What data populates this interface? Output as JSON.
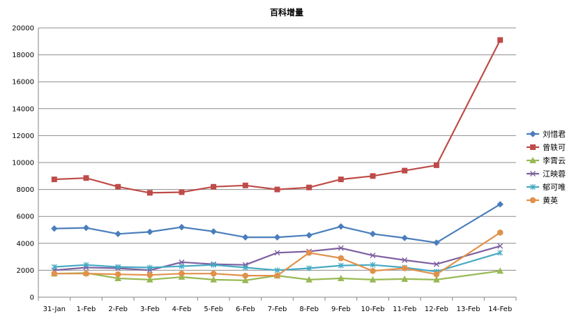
{
  "chart_data": {
    "type": "line",
    "title": "百科增量",
    "xlabel": "",
    "ylabel": "",
    "categories": [
      "31-Jan",
      "1-Feb",
      "2-Feb",
      "3-Feb",
      "4-Feb",
      "5-Feb",
      "6-Feb",
      "7-Feb",
      "8-Feb",
      "9-Feb",
      "10-Feb",
      "11-Feb",
      "12-Feb",
      "13-Feb",
      "14-Feb"
    ],
    "ylim": [
      0,
      20000
    ],
    "yticks": [
      0,
      2000,
      4000,
      6000,
      8000,
      10000,
      12000,
      14000,
      16000,
      18000,
      20000
    ],
    "grid": true,
    "legend": "right",
    "series": [
      {
        "name": "刘惜君",
        "color": "#4a7ebb",
        "marker": "diamond",
        "values": [
          5100,
          5150,
          4700,
          4850,
          5200,
          4880,
          4450,
          4450,
          4600,
          5250,
          4700,
          4400,
          4050,
          null,
          6900
        ]
      },
      {
        "name": "曾轶可",
        "color": "#be4b48",
        "marker": "square",
        "values": [
          8750,
          8850,
          8200,
          7750,
          7800,
          8200,
          8300,
          8000,
          8150,
          8750,
          9000,
          9400,
          9800,
          null,
          19100
        ]
      },
      {
        "name": "李霄云",
        "color": "#98b954",
        "marker": "triangle",
        "values": [
          1750,
          1800,
          1400,
          1300,
          1500,
          1300,
          1250,
          1600,
          1300,
          1400,
          1300,
          1350,
          1300,
          null,
          1950
        ]
      },
      {
        "name": "江映蓉",
        "color": "#7d60a0",
        "marker": "x",
        "values": [
          2000,
          2200,
          2150,
          2000,
          2600,
          2450,
          2400,
          3300,
          3400,
          3650,
          3100,
          2750,
          2450,
          null,
          3800
        ]
      },
      {
        "name": "郁可唯",
        "color": "#46aac4",
        "marker": "asterisk",
        "values": [
          2250,
          2400,
          2250,
          2200,
          2300,
          2400,
          2200,
          2000,
          2150,
          2350,
          2400,
          2200,
          1900,
          null,
          3300
        ]
      },
      {
        "name": "黄英",
        "color": "#e0914a",
        "marker": "circle",
        "values": [
          1750,
          1750,
          1700,
          1650,
          1750,
          1750,
          1600,
          1600,
          3300,
          2900,
          1950,
          2150,
          1700,
          null,
          4800
        ]
      }
    ]
  }
}
